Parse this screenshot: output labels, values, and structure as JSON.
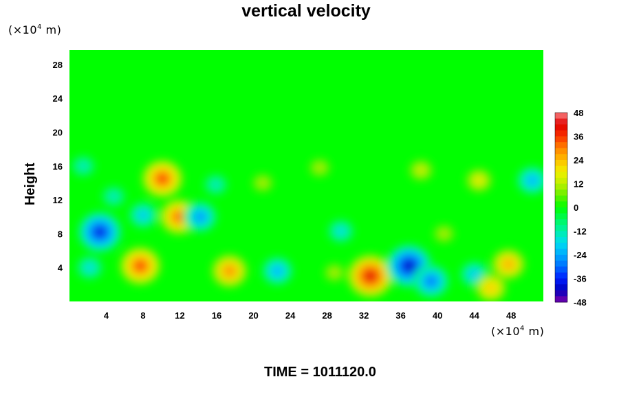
{
  "header": {
    "title": "vertical velocity",
    "y_unit_prefix": "(×10",
    "y_unit_exp": "4",
    "y_unit_suffix": " m)",
    "x_unit_prefix": "(×10",
    "x_unit_exp": "4",
    "x_unit_suffix": " m)"
  },
  "footer": {
    "time_caption": "TIME = 1011120.0"
  },
  "chart_data": {
    "type": "heatmap",
    "title": "vertical velocity",
    "ylabel": "Height",
    "xlabel": "",
    "x_unit": "(×10^4 m)",
    "y_unit": "(×10^4 m)",
    "xlim": [
      0,
      51.5
    ],
    "ylim": [
      0,
      29.7
    ],
    "x_ticks": [
      4,
      8,
      12,
      16,
      20,
      24,
      28,
      32,
      36,
      40,
      44,
      48
    ],
    "y_ticks": [
      4,
      8,
      12,
      16,
      20,
      24,
      28
    ],
    "colorbar": {
      "min": -48,
      "max": 48,
      "step": 3,
      "tick_labels": [
        48,
        36,
        24,
        12,
        0,
        -12,
        -24,
        -36,
        -48
      ]
    },
    "features": [
      {
        "x": 7.7,
        "y": 4.2,
        "value": 36
      },
      {
        "x": 17.4,
        "y": 3.6,
        "value": 30
      },
      {
        "x": 32.7,
        "y": 3.0,
        "value": 42
      },
      {
        "x": 10.1,
        "y": 14.5,
        "value": 36
      },
      {
        "x": 11.9,
        "y": 10.0,
        "value": 33
      },
      {
        "x": 3.3,
        "y": 8.2,
        "value": -39
      },
      {
        "x": 36.9,
        "y": 4.2,
        "value": -42
      },
      {
        "x": 39.3,
        "y": 2.4,
        "value": -30
      },
      {
        "x": 22.6,
        "y": 3.6,
        "value": -24
      },
      {
        "x": 47.7,
        "y": 4.4,
        "value": 27
      },
      {
        "x": 44.0,
        "y": 3.2,
        "value": -21
      },
      {
        "x": 28.8,
        "y": 3.4,
        "value": 12
      },
      {
        "x": 2.2,
        "y": 4.0,
        "value": -18
      },
      {
        "x": 4.8,
        "y": 12.4,
        "value": -15
      },
      {
        "x": 14.2,
        "y": 10.0,
        "value": -27
      },
      {
        "x": 8.0,
        "y": 10.2,
        "value": -21
      },
      {
        "x": 38.2,
        "y": 15.5,
        "value": 15
      },
      {
        "x": 44.5,
        "y": 14.3,
        "value": 18
      },
      {
        "x": 50.3,
        "y": 14.3,
        "value": -24
      },
      {
        "x": 27.2,
        "y": 15.8,
        "value": 12
      },
      {
        "x": 21.0,
        "y": 14.0,
        "value": 12
      },
      {
        "x": 15.9,
        "y": 13.8,
        "value": -15
      },
      {
        "x": 1.5,
        "y": 16.0,
        "value": -15
      },
      {
        "x": 29.5,
        "y": 8.3,
        "value": -18
      },
      {
        "x": 45.8,
        "y": 1.6,
        "value": 24
      },
      {
        "x": 40.7,
        "y": 8.0,
        "value": 12
      }
    ]
  }
}
